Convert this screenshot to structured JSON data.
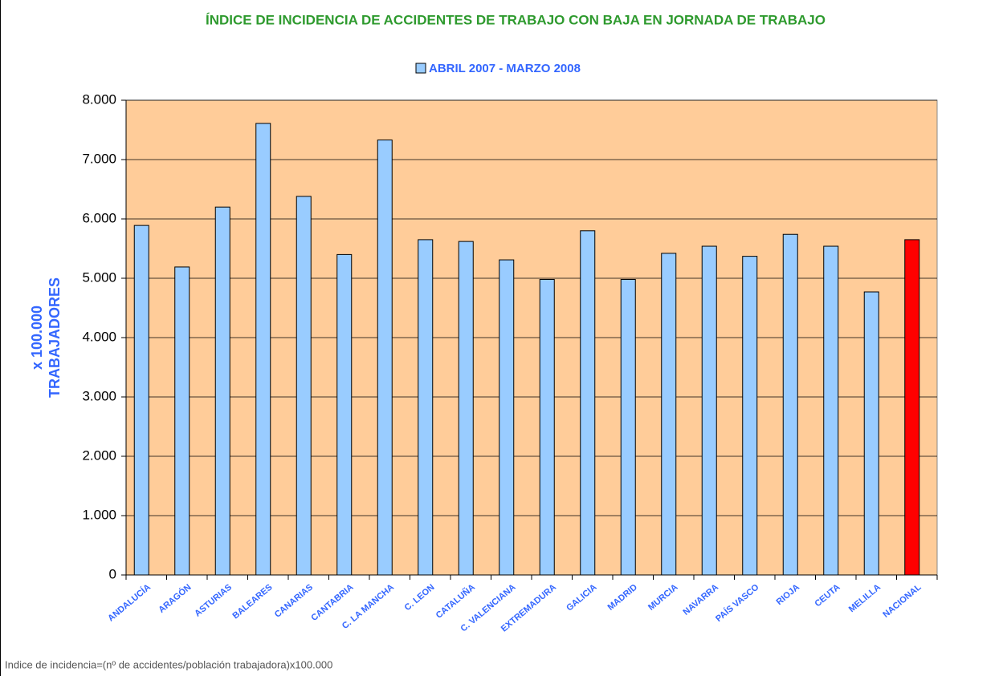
{
  "chart_data": {
    "type": "bar",
    "title": "ÍNDICE DE INCIDENCIA DE ACCIDENTES DE TRABAJO CON BAJA EN JORNADA DE TRABAJO",
    "y_label": [
      "x 100.000",
      "TRABAJADORES"
    ],
    "footnote": "Indice de incidencia=(nº de accidentes/población trabajadora)x100.000",
    "categories": [
      "ANDALUCÍA",
      "ARAGÓN",
      "ASTURIAS",
      "BALEARES",
      "CANARIAS",
      "CANTABRIA",
      "C. LA MANCHA",
      "C. LEON",
      "CATALUÑA",
      "C. VALENCIANA",
      "EXTREMADURA",
      "GALICIA",
      "MADRID",
      "MURCIA",
      "NAVARRA",
      "PAÍS VASCO",
      "RIOJA",
      "CEUTA",
      "MELILLA",
      "NACIONAL"
    ],
    "series": [
      {
        "name": "ABRIL 2007 - MARZO 2008",
        "color": "#99ccff",
        "values": [
          5890,
          5190,
          6200,
          7610,
          6380,
          5400,
          7330,
          5650,
          5620,
          5310,
          4980,
          5800,
          4980,
          5420,
          5540,
          5370,
          5740,
          5540,
          4770,
          5650
        ],
        "colors": [
          "#99ccff",
          "#99ccff",
          "#99ccff",
          "#99ccff",
          "#99ccff",
          "#99ccff",
          "#99ccff",
          "#99ccff",
          "#99ccff",
          "#99ccff",
          "#99ccff",
          "#99ccff",
          "#99ccff",
          "#99ccff",
          "#99ccff",
          "#99ccff",
          "#99ccff",
          "#99ccff",
          "#99ccff",
          "#ff0000"
        ]
      }
    ],
    "ylim": [
      0,
      8000
    ],
    "yticks": [
      0,
      {
        "value": 1000,
        "label": "1.000"
      },
      {
        "value": 2000,
        "label": "2.000"
      },
      {
        "value": 3000,
        "label": "3.000"
      },
      {
        "value": 4000,
        "label": "4.000"
      },
      {
        "value": 5000,
        "label": "5.000"
      },
      {
        "value": 6000,
        "label": "6.000"
      },
      {
        "value": 7000,
        "label": "7.000"
      },
      {
        "value": 8000,
        "label": "8.000"
      }
    ],
    "grid": true,
    "plot_background": "#ffcc99"
  }
}
